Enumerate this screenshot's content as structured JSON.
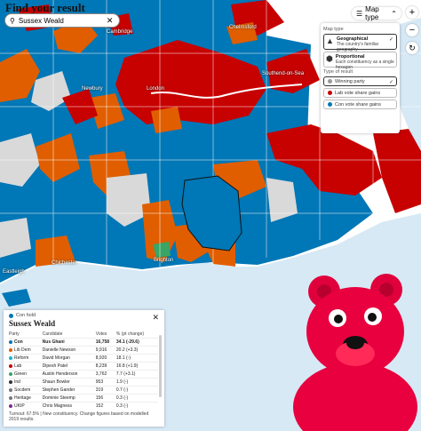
{
  "app": {
    "title": "Find your result"
  },
  "search": {
    "value": "Sussex Weald",
    "placeholder": "Search constituency"
  },
  "map_type_button": {
    "label": "Map type"
  },
  "zoom": {
    "in": "+",
    "out": "−"
  },
  "panel": {
    "heading_map_type": "Map type",
    "options": [
      {
        "title": "Geographical",
        "desc": "The country's familiar geography",
        "selected": true,
        "icon": "uk-map-icon"
      },
      {
        "title": "Proportional",
        "desc": "Each constituency as a single hexagon",
        "selected": false,
        "icon": "hexagon-icon"
      }
    ],
    "heading_result": "Type of result",
    "results": [
      {
        "label": "Winning party",
        "selected": true,
        "color": "#999999"
      },
      {
        "label": "Lab vote share gains",
        "selected": false,
        "color": "#c70000"
      },
      {
        "label": "Con vote share gains",
        "selected": false,
        "color": "#0077b6"
      }
    ]
  },
  "labels": [
    {
      "text": "Cambridge"
    },
    {
      "text": "Chelmsford"
    },
    {
      "text": "Southend-on-Sea"
    },
    {
      "text": "London"
    },
    {
      "text": "Newbury"
    },
    {
      "text": "Brighton"
    },
    {
      "text": "Chichester"
    },
    {
      "text": "Eastleigh"
    }
  ],
  "colors": {
    "con": "#0077b6",
    "lab": "#c70000",
    "libdem": "#e05e00",
    "green": "#39a566",
    "other": "#d9d9d9",
    "sea": "#d7e9f5",
    "land": "#ffffff"
  },
  "result": {
    "hold_text": "Con hold",
    "constituency": "Sussex Weald",
    "columns": [
      "Party",
      "Candidate",
      "Votes",
      "% (pt change)"
    ],
    "rows": [
      {
        "party": "Con",
        "candidate": "Nus Ghani",
        "votes": "16,758",
        "pct": "34.1 (-29.6)",
        "color": "#0077b6",
        "bold": true
      },
      {
        "party": "Lib Dem",
        "candidate": "Danielle Newson",
        "votes": "9,916",
        "pct": "20.2 (+3.3)",
        "color": "#e05e00"
      },
      {
        "party": "Reform",
        "candidate": "David Morgan",
        "votes": "8,920",
        "pct": "18.1 (-)",
        "color": "#12b6cf"
      },
      {
        "party": "Lab",
        "candidate": "Dipesh Patel",
        "votes": "8,239",
        "pct": "16.8 (+1.9)",
        "color": "#c70000"
      },
      {
        "party": "Green",
        "candidate": "Austin Henderson",
        "votes": "3,762",
        "pct": "7.7 (+3.1)",
        "color": "#39a566"
      },
      {
        "party": "Ind",
        "candidate": "Shaun Bowler",
        "votes": "953",
        "pct": "1.9 (-)",
        "color": "#333333"
      },
      {
        "party": "Socdem",
        "candidate": "Stephen Gander",
        "votes": "319",
        "pct": "0.7 (-)",
        "color": "#777777"
      },
      {
        "party": "Heritage",
        "candidate": "Dominie Steemp",
        "votes": "156",
        "pct": "0.3 (-)",
        "color": "#777777"
      },
      {
        "party": "UKIP",
        "candidate": "Chris Magness",
        "votes": "152",
        "pct": "0.3 (-)",
        "color": "#7a2c8f"
      }
    ],
    "footnote": "Turnout: 67.5% | New constituency. Change figures based on modelled 2019 results."
  }
}
